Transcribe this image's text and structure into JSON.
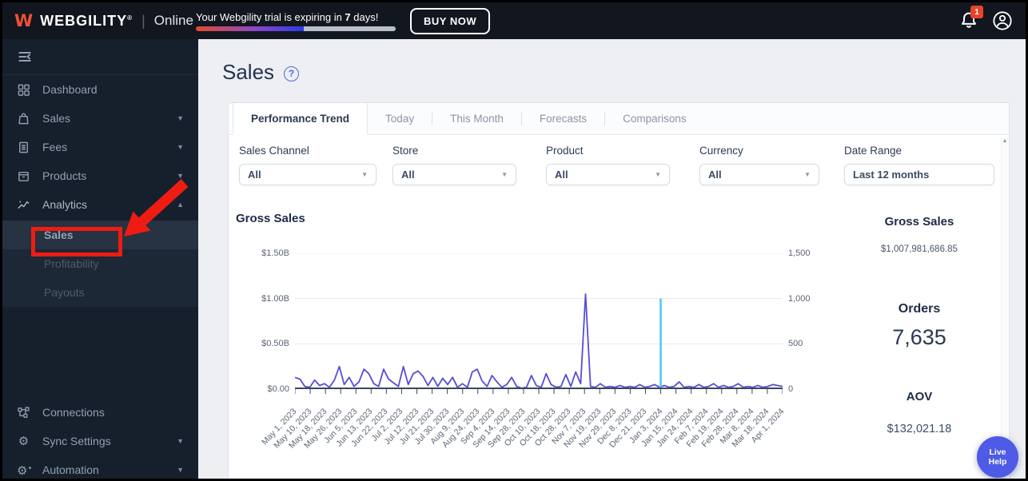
{
  "topbar": {
    "brand": "WEBGILITY",
    "brand_reg": "®",
    "brand_divider": "|",
    "brand_mode": "Online",
    "trial": {
      "prefix": "Your Webgility trial is expiring in ",
      "days": "7",
      "suffix": " days!"
    },
    "buy_now_label": "BUY NOW",
    "notification_count": "1"
  },
  "sidebar": {
    "items": [
      {
        "label": "Dashboard",
        "icon": "dashboard-grid-icon"
      },
      {
        "label": "Sales",
        "icon": "shopping-bag-icon",
        "chevron": "down"
      },
      {
        "label": "Fees",
        "icon": "invoice-icon",
        "chevron": "down"
      },
      {
        "label": "Products",
        "icon": "product-box-icon",
        "chevron": "down"
      },
      {
        "label": "Analytics",
        "icon": "trend-line-icon",
        "chevron": "up",
        "expanded": true,
        "children": [
          "Sales",
          "Profitability",
          "Payouts"
        ],
        "active_child": "Sales"
      },
      {
        "label": "Connections",
        "icon": "network-icon"
      },
      {
        "label": "Sync Settings",
        "icon": "gear-icon",
        "chevron": "down"
      },
      {
        "label": "Automation",
        "icon": "gear-sparkle-icon",
        "chevron": "down"
      }
    ],
    "chevron_down_glyph": "▼",
    "chevron_up_glyph": "▲"
  },
  "page": {
    "title": "Sales",
    "help_glyph": "?"
  },
  "tabs": [
    {
      "label": "Performance Trend",
      "active": true
    },
    {
      "label": "Today",
      "active": false
    },
    {
      "label": "This Month",
      "active": false
    },
    {
      "label": "Forecasts",
      "active": false
    },
    {
      "label": "Comparisons",
      "active": false
    }
  ],
  "filters": [
    {
      "label": "Sales Channel",
      "value": "All",
      "type": "dropdown"
    },
    {
      "label": "Store",
      "value": "All",
      "type": "dropdown"
    },
    {
      "label": "Product",
      "value": "All",
      "type": "dropdown"
    },
    {
      "label": "Currency",
      "value": "All",
      "type": "dropdown"
    },
    {
      "label": "Date Range",
      "value": "Last 12 months",
      "type": "input"
    }
  ],
  "chart_data": {
    "type": "line",
    "title": "Gross Sales",
    "grid": true,
    "left_axis": {
      "unit": "USD billions",
      "range": [
        0,
        1.5
      ],
      "tick_values": [
        0,
        0.5,
        1.0,
        1.5
      ],
      "tick_labels": [
        "$0.00",
        "$0.50B",
        "$1.00B",
        "$1.50B"
      ]
    },
    "right_axis": {
      "unit": "count",
      "range": [
        0,
        1500
      ],
      "tick_values": [
        0,
        500,
        1000,
        1500
      ],
      "tick_labels": [
        "0",
        "500",
        "1,000",
        "1,500"
      ]
    },
    "x_tick_labels": [
      "May 1, 2023",
      "May 10, 2023",
      "May 18, 2023",
      "May 26, 2023",
      "Jun 5, 2023",
      "Jun 13, 2023",
      "Jun 22, 2023",
      "Jul 2, 2023",
      "Jul 12, 2023",
      "Jul 21, 2023",
      "Jul 30, 2023",
      "Aug 9, 2023",
      "Aug 24, 2023",
      "Sep 4, 2023",
      "Sep 14, 2023",
      "Sep 28, 2023",
      "Oct 10, 2023",
      "Oct 18, 2023",
      "Oct 28, 2023",
      "Nov 7, 2023",
      "Nov 19, 2023",
      "Nov 29, 2023",
      "Dec 8, 2023",
      "Dec 21, 2023",
      "Jan 3, 2024",
      "Jan 15, 2024",
      "Jan 24, 2024",
      "Feb 7, 2024",
      "Feb 19, 2024",
      "Feb 28, 2024",
      "Mar 8, 2024",
      "Mar 18, 2024",
      "Apr 1, 2024"
    ],
    "series": [
      {
        "name": "Gross Sales",
        "color": "#574dd4",
        "unit": "$B",
        "values": [
          0.13,
          0.11,
          0.03,
          0.02,
          0.1,
          0.04,
          0.06,
          0.02,
          0.1,
          0.25,
          0.05,
          0.13,
          0.03,
          0.08,
          0.22,
          0.17,
          0.06,
          0.03,
          0.22,
          0.11,
          0.07,
          0.03,
          0.25,
          0.05,
          0.17,
          0.2,
          0.14,
          0.04,
          0.13,
          0.03,
          0.12,
          0.05,
          0.13,
          0.02,
          0.06,
          0.02,
          0.19,
          0.22,
          0.09,
          0.03,
          0.15,
          0.08,
          0.02,
          0.05,
          0.13,
          0.03,
          0.01,
          0.02,
          0.15,
          0.04,
          0.02,
          0.17,
          0.05,
          0.02,
          0.03,
          0.16,
          0.03,
          0.19,
          0.06,
          1.05,
          0.03,
          0.02,
          0.06,
          0.02,
          0.03,
          0.02,
          0.04,
          0.02,
          0.03,
          0.02,
          0.05,
          0.02,
          0.03,
          0.05,
          0.02,
          0.04,
          0.02,
          0.03,
          0.08,
          0.02,
          0.03,
          0.02,
          0.05,
          0.02,
          0.03,
          0.06,
          0.02,
          0.04,
          0.02,
          0.03,
          0.06,
          0.02,
          0.03,
          0.02,
          0.04,
          0.02,
          0.03,
          0.05,
          0.04,
          0.03
        ]
      },
      {
        "name": "secondary-flat",
        "color": "#2fc0a6",
        "unit": "$B",
        "constant": 0.008,
        "note": "flat teal line along zero baseline"
      }
    ],
    "highlight": {
      "type": "vertical-line",
      "color": "#49c8f2",
      "x_label": "Jan 3, 2024",
      "right_axis_value": 1000
    },
    "peak": {
      "x_label": "Nov 7, 2023",
      "value_billions": 1.05
    }
  },
  "stats": [
    {
      "label": "Gross Sales",
      "value": "$1,007,981,686.85"
    },
    {
      "label": "Orders",
      "value": "7,635"
    },
    {
      "label": "AOV",
      "value": "$132,021.18"
    }
  ],
  "live_help_label": "Live Help",
  "colors": {
    "accent_orange": "#f05136",
    "badge_red": "#e8432d",
    "line_purple": "#574dd4",
    "line_cyan": "#49c8f2",
    "line_teal": "#2fc0a6",
    "annotation_red": "#ee1c12",
    "help_blue": "#4d5be7"
  }
}
